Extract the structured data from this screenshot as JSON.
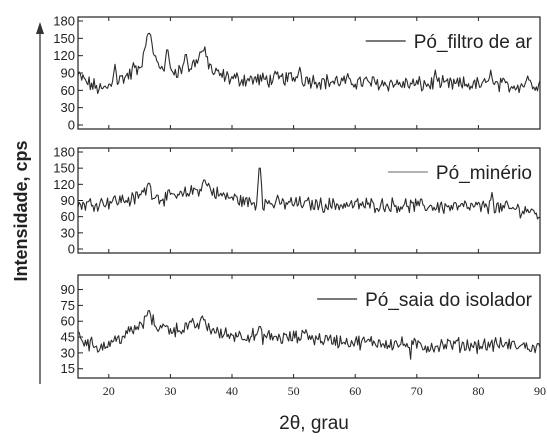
{
  "chart_data": {
    "type": "line",
    "ylabel": "Intensidade, cps",
    "xlabel": "2θ, grau",
    "xlim": [
      15,
      90
    ],
    "xticks": [
      20,
      30,
      40,
      50,
      60,
      70,
      80,
      90
    ],
    "grid": false,
    "panels": [
      {
        "legend": "Pó_filtro de ar",
        "legend_position": "top-right",
        "ylim": [
          0,
          180
        ],
        "yticks": [
          0,
          30,
          60,
          90,
          120,
          150,
          180
        ],
        "peaks": [
          [
            21,
            105
          ],
          [
            24,
            108
          ],
          [
            26.4,
            158
          ],
          [
            27.4,
            120
          ],
          [
            29.5,
            130
          ],
          [
            32.5,
            122
          ],
          [
            35.3,
            128
          ],
          [
            51,
            100
          ],
          [
            73,
            95
          ],
          [
            82,
            95
          ],
          [
            88,
            85
          ]
        ],
        "points": [
          [
            15,
            85
          ],
          [
            17,
            70
          ],
          [
            19,
            60
          ],
          [
            21,
            75
          ],
          [
            23,
            85
          ],
          [
            25,
            95
          ],
          [
            26.4,
            158
          ],
          [
            28,
            100
          ],
          [
            30,
            95
          ],
          [
            33,
            95
          ],
          [
            35.3,
            128
          ],
          [
            37,
            90
          ],
          [
            40,
            80
          ],
          [
            45,
            78
          ],
          [
            50,
            82
          ],
          [
            55,
            75
          ],
          [
            60,
            75
          ],
          [
            65,
            72
          ],
          [
            70,
            70
          ],
          [
            75,
            70
          ],
          [
            80,
            70
          ],
          [
            85,
            68
          ],
          [
            90,
            72
          ]
        ]
      },
      {
        "legend": "Pó_minério",
        "legend_position": "top-right",
        "ylim": [
          0,
          180
        ],
        "yticks": [
          0,
          30,
          60,
          90,
          120,
          150,
          180
        ],
        "peaks": [
          [
            26.5,
            122
          ],
          [
            30.5,
            102
          ],
          [
            35.5,
            128
          ],
          [
            36.2,
            122
          ],
          [
            44.5,
            150
          ],
          [
            82.2,
            105
          ]
        ],
        "points": [
          [
            15,
            82
          ],
          [
            18,
            85
          ],
          [
            21,
            90
          ],
          [
            24,
            92
          ],
          [
            26.5,
            112
          ],
          [
            28,
            95
          ],
          [
            31,
            95
          ],
          [
            33,
            105
          ],
          [
            35.5,
            115
          ],
          [
            38,
            100
          ],
          [
            41,
            92
          ],
          [
            43,
            85
          ],
          [
            46,
            85
          ],
          [
            50,
            85
          ],
          [
            55,
            82
          ],
          [
            60,
            82
          ],
          [
            65,
            82
          ],
          [
            70,
            80
          ],
          [
            75,
            78
          ],
          [
            80,
            78
          ],
          [
            85,
            75
          ],
          [
            88,
            72
          ],
          [
            90,
            62
          ]
        ]
      },
      {
        "legend": "Pó_saia do isolador",
        "legend_position": "top-right",
        "ylim": [
          10,
          100
        ],
        "yticks": [
          15,
          30,
          45,
          60,
          75,
          90
        ],
        "peaks": [
          [
            26.5,
            70
          ],
          [
            35.2,
            65
          ],
          [
            44.5,
            55
          ],
          [
            52,
            52
          ],
          [
            69,
            24
          ]
        ],
        "points": [
          [
            15,
            46
          ],
          [
            17,
            38
          ],
          [
            19,
            36
          ],
          [
            21,
            42
          ],
          [
            23,
            48
          ],
          [
            25,
            55
          ],
          [
            26.5,
            62
          ],
          [
            28,
            55
          ],
          [
            31,
            52
          ],
          [
            33,
            55
          ],
          [
            35.2,
            58
          ],
          [
            38,
            48
          ],
          [
            41,
            47
          ],
          [
            44,
            46
          ],
          [
            48,
            44
          ],
          [
            52,
            45
          ],
          [
            56,
            42
          ],
          [
            60,
            40
          ],
          [
            64,
            40
          ],
          [
            68,
            38
          ],
          [
            72,
            36
          ],
          [
            76,
            38
          ],
          [
            80,
            37
          ],
          [
            84,
            38
          ],
          [
            88,
            36
          ],
          [
            90,
            34
          ]
        ]
      }
    ]
  }
}
